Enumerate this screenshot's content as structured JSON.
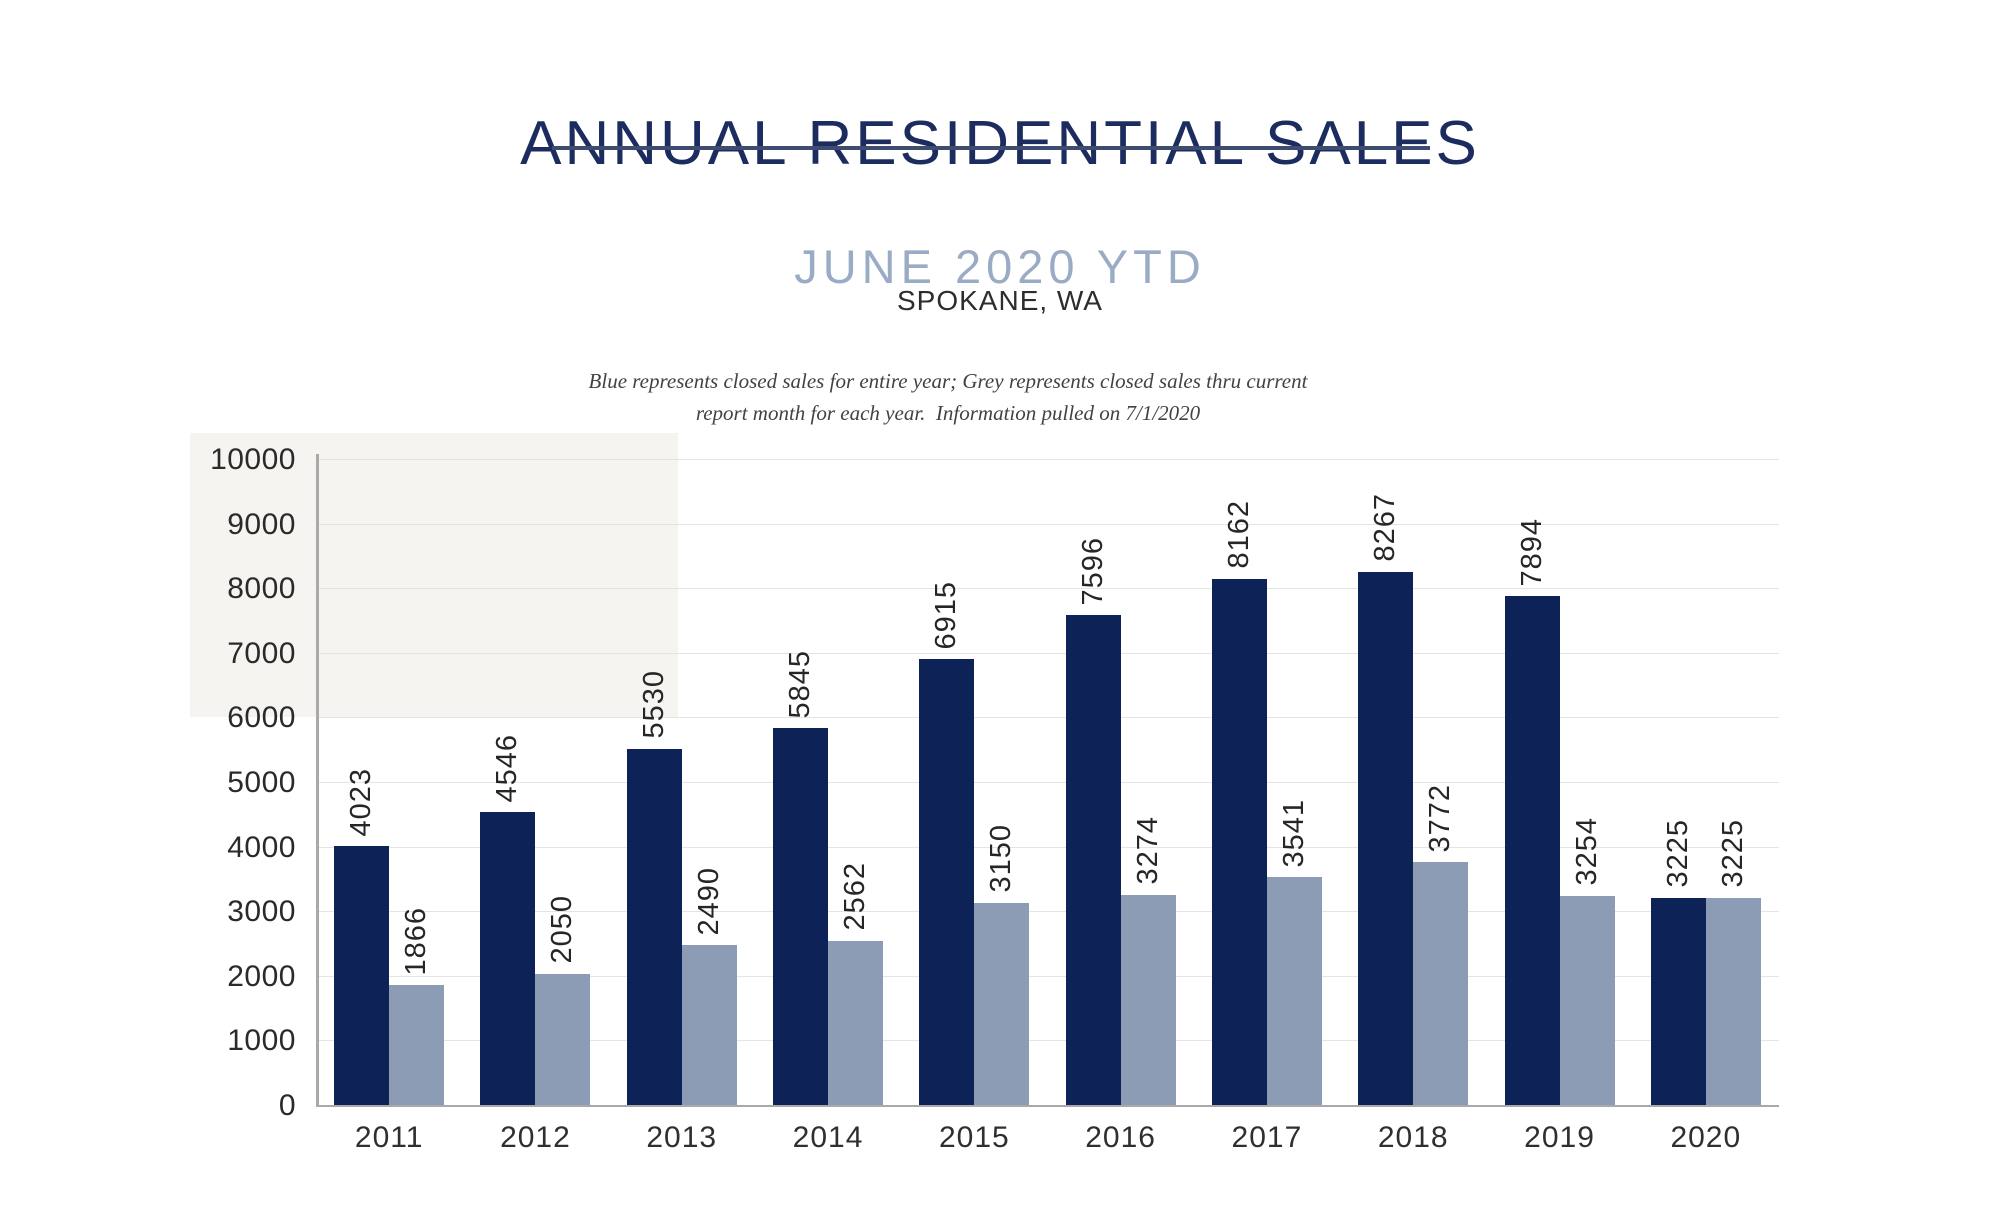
{
  "header": {
    "title": "ANNUAL RESIDENTIAL SALES",
    "subtitle": "JUNE 2020 YTD",
    "location": "SPOKANE, WA",
    "note_line1": "Blue represents closed sales for entire year; Grey represents closed sales thru current",
    "note_line2": "report month for each year.  Information pulled on 7/1/2020",
    "title_color": "#1c2c5e",
    "underline_color": "#3e4c72",
    "subtitle_color": "#9aabc5"
  },
  "chart_data": {
    "type": "bar",
    "title": "ANNUAL RESIDENTIAL SALES — JUNE 2020 YTD — SPOKANE, WA",
    "categories": [
      "2011",
      "2012",
      "2013",
      "2014",
      "2015",
      "2016",
      "2017",
      "2018",
      "2019",
      "2020"
    ],
    "series": [
      {
        "name": "Closed sales for entire year",
        "color": "#0d2257",
        "values": [
          4023,
          4546,
          5530,
          5845,
          6915,
          7596,
          8162,
          8267,
          7894,
          3225
        ]
      },
      {
        "name": "Closed sales thru current report month",
        "color": "#8d9cb5",
        "values": [
          1866,
          2050,
          2490,
          2562,
          3150,
          3274,
          3541,
          3772,
          3254,
          3225
        ]
      }
    ],
    "xlabel": "",
    "ylabel": "",
    "ylim": [
      0,
      10000
    ],
    "yticks": [
      0,
      1000,
      2000,
      3000,
      4000,
      5000,
      6000,
      7000,
      8000,
      9000,
      10000
    ],
    "grid": true,
    "legend_position": "none",
    "value_labels": "rotated-90-above-bars",
    "gridline_color": "#e4e4e4",
    "axis_color": "#a9a9a9",
    "tick_label_color": "#2a2a2a"
  }
}
